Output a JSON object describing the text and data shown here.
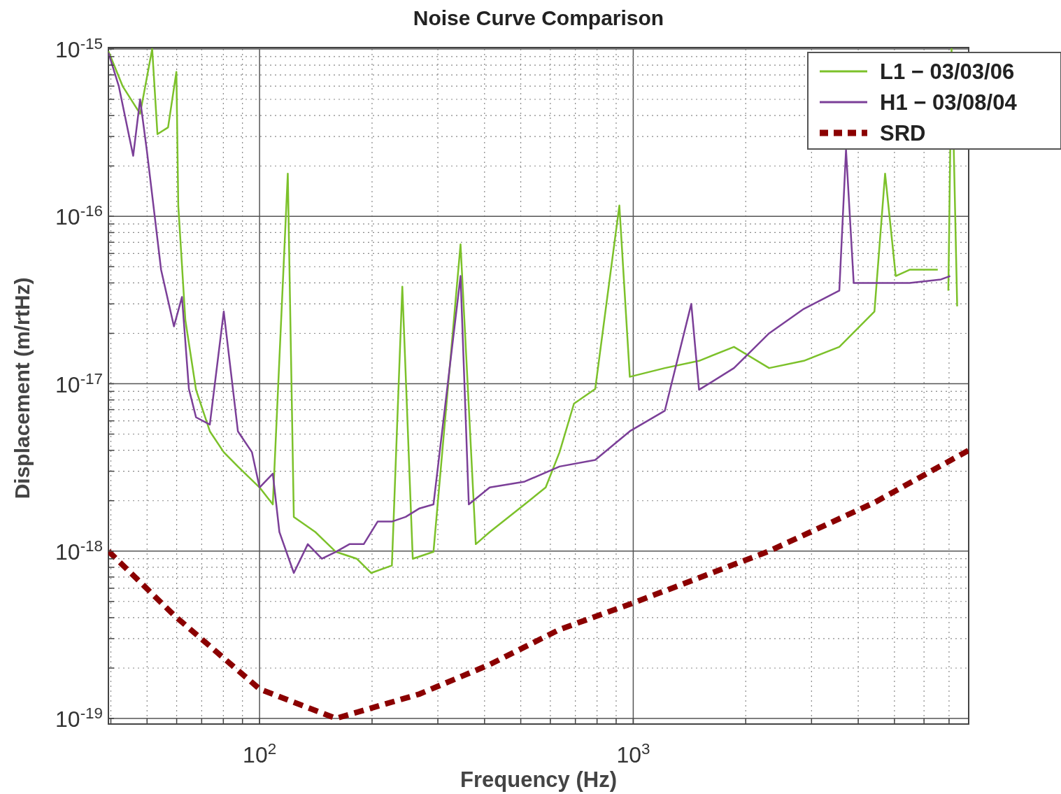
{
  "chart_data": {
    "type": "line",
    "title": "Noise Curve Comparison",
    "xlabel": "Frequency (Hz)",
    "ylabel": "Displacement (m/rtHz)",
    "log": "xy",
    "grid": true,
    "legend": "top right",
    "xlim": [
      39.4,
      7900
    ],
    "ylim": [
      1e-19,
      1e-15
    ],
    "xticks": [
      {
        "value": 40,
        "label": null
      },
      {
        "value": 50,
        "label": null
      },
      {
        "value": 60,
        "label": null
      },
      {
        "value": 70,
        "label": null
      },
      {
        "value": 80,
        "label": null
      },
      {
        "value": 90,
        "label": null
      },
      {
        "value": 100,
        "label": "10$^{2}$"
      },
      {
        "value": 200,
        "label": null
      },
      {
        "value": 300,
        "label": null
      },
      {
        "value": 400,
        "label": null
      },
      {
        "value": 500,
        "label": null
      },
      {
        "value": 600,
        "label": null
      },
      {
        "value": 700,
        "label": null
      },
      {
        "value": 800,
        "label": null
      },
      {
        "value": 900,
        "label": null
      },
      {
        "value": 1000,
        "label": "10$^{3}$"
      },
      {
        "value": 2000,
        "label": null
      },
      {
        "value": 3000,
        "label": null
      },
      {
        "value": 4000,
        "label": null
      },
      {
        "value": 5000,
        "label": null
      },
      {
        "value": 6000,
        "label": null
      },
      {
        "value": 7000,
        "label": null
      }
    ],
    "yticks": [
      {
        "value": 1e-19,
        "label": "10$^{-19}$"
      },
      {
        "value": 2e-19,
        "label": null
      },
      {
        "value": 3e-19,
        "label": null
      },
      {
        "value": 4e-19,
        "label": null
      },
      {
        "value": 5e-19,
        "label": null
      },
      {
        "value": 6e-19,
        "label": null
      },
      {
        "value": 7e-19,
        "label": null
      },
      {
        "value": 8e-19,
        "label": null
      },
      {
        "value": 9e-19,
        "label": null
      },
      {
        "value": 1e-18,
        "label": "10$^{-18}$"
      },
      {
        "value": 2e-18,
        "label": null
      },
      {
        "value": 3e-18,
        "label": null
      },
      {
        "value": 4e-18,
        "label": null
      },
      {
        "value": 5e-18,
        "label": null
      },
      {
        "value": 6e-18,
        "label": null
      },
      {
        "value": 7e-18,
        "label": null
      },
      {
        "value": 8e-18,
        "label": null
      },
      {
        "value": 9e-18,
        "label": null
      },
      {
        "value": 1e-17,
        "label": "10$^{-17}$"
      },
      {
        "value": 2e-17,
        "label": null
      },
      {
        "value": 3e-17,
        "label": null
      },
      {
        "value": 4e-17,
        "label": null
      },
      {
        "value": 5e-17,
        "label": null
      },
      {
        "value": 6e-17,
        "label": null
      },
      {
        "value": 7e-17,
        "label": null
      },
      {
        "value": 8e-17,
        "label": null
      },
      {
        "value": 9e-17,
        "label": null
      },
      {
        "value": 1e-16,
        "label": "10$^{-16}$"
      },
      {
        "value": 2e-16,
        "label": null
      },
      {
        "value": 3e-16,
        "label": null
      },
      {
        "value": 4e-16,
        "label": null
      },
      {
        "value": 5e-16,
        "label": null
      },
      {
        "value": 6e-16,
        "label": null
      },
      {
        "value": 7e-16,
        "label": null
      },
      {
        "value": 8e-16,
        "label": null
      },
      {
        "value": 9e-16,
        "label": null
      },
      {
        "value": 1e-15,
        "label": "10$^{-15}$"
      }
    ],
    "series": [
      {
        "name": "L1 − 03/03/06",
        "color": "#7cc12a",
        "line_style": "solid",
        "x": [
          39.4,
          43,
          47.9,
          51.6,
          53.3,
          56.9,
          59.9,
          60.6,
          63.3,
          67.6,
          73.6,
          80.2,
          87.5,
          100,
          108.5,
          119,
          123.5,
          141,
          160,
          182,
          199,
          226,
          241,
          257,
          292,
          345,
          379,
          413,
          512,
          583,
          635,
          694,
          791,
          918,
          979,
          1215,
          1500,
          1860,
          2310,
          2860,
          3560,
          4420,
          4720,
          5040,
          5490,
          6530,
          6660,
          6970,
          7110,
          7360
        ],
        "values": [
          9.7e-16,
          6e-16,
          4.1e-16,
          1e-15,
          3.1e-16,
          3.4e-16,
          7.3e-16,
          1.16e-16,
          2.4e-17,
          9.2e-18,
          5.2e-18,
          3.9e-18,
          3.2e-18,
          2.4e-18,
          1.9e-18,
          1.8e-16,
          1.6e-18,
          1.3e-18,
          9.9e-19,
          9e-19,
          7.4e-19,
          8.2e-19,
          3.8e-17,
          9e-19,
          9.9e-19,
          6.8e-17,
          1.1e-18,
          1.3e-18,
          1.9e-18,
          2.4e-18,
          3.9e-18,
          7.6e-18,
          9.3e-18,
          1.16e-16,
          1.1e-17,
          1.24e-17,
          1.37e-17,
          1.66e-17,
          1.24e-17,
          1.37e-17,
          1.66e-17,
          2.7e-17,
          1.8e-16,
          4.4e-17,
          4.8e-17,
          4.8e-17,
          null,
          3.6e-17,
          1e-15,
          2.9e-17
        ]
      },
      {
        "name": "H1 − 03/08/04",
        "color": "#7b3f98",
        "line_style": "solid",
        "x": [
          39.4,
          42,
          45.9,
          47.9,
          49.9,
          52,
          54.5,
          59,
          62,
          64.7,
          67.6,
          73.6,
          80.2,
          87.5,
          95.4,
          100,
          108.5,
          113,
          123.5,
          134.6,
          146.8,
          160,
          174,
          190,
          207,
          226,
          246,
          268,
          292,
          345,
          363,
          413,
          512,
          635,
          791,
          979,
          1215,
          1430,
          1500,
          1860,
          2310,
          2860,
          3560,
          3710,
          3890,
          4420,
          5490,
          6660,
          7050
        ],
        "values": [
          9.5e-16,
          6e-16,
          2.3e-16,
          5e-16,
          2.5e-16,
          1.16e-16,
          4.8e-17,
          2.2e-17,
          3.3e-17,
          9.3e-18,
          6.3e-18,
          5.7e-18,
          2.7e-17,
          5.2e-18,
          3.9e-18,
          2.4e-18,
          2.9e-18,
          1.3e-18,
          7.4e-19,
          1.1e-18,
          9e-19,
          9.9e-19,
          1.1e-18,
          1.1e-18,
          1.5e-18,
          1.5e-18,
          1.6e-18,
          1.8e-18,
          1.9e-18,
          4.4e-17,
          1.9e-18,
          2.4e-18,
          2.6e-18,
          3.2e-18,
          3.5e-18,
          5.2e-18,
          6.9e-18,
          3e-17,
          9.2e-18,
          1.24e-17,
          2e-17,
          2.8e-17,
          3.6e-17,
          2.5e-16,
          4e-17,
          4e-17,
          4e-17,
          4.2e-17,
          4.4e-17
        ]
      },
      {
        "name": "SRD",
        "color": "#8b0000",
        "line_style": "dashed",
        "x": [
          39.4,
          59.3,
          100,
          160,
          268,
          413,
          635,
          1000,
          2310,
          4420,
          7900
        ],
        "values": [
          1e-18,
          4.1e-19,
          1.5e-19,
          1e-19,
          1.4e-19,
          2.1e-19,
          3.4e-19,
          4.9e-19,
          1e-18,
          1.95e-18,
          4e-18
        ]
      }
    ]
  }
}
